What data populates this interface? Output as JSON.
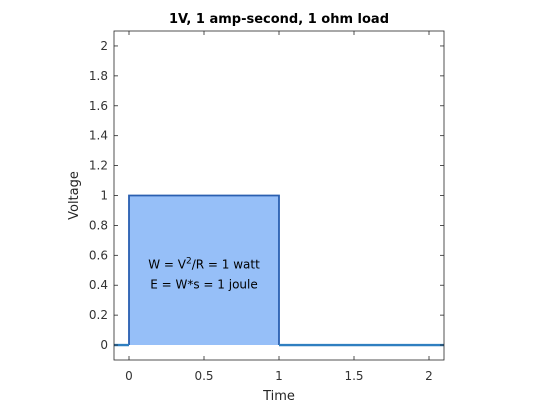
{
  "chart_data": {
    "type": "area",
    "title": "1V, 1 amp-second, 1 ohm load",
    "xlabel": "Time",
    "ylabel": "Voltage",
    "xlim": [
      -0.1,
      2.1
    ],
    "ylim": [
      -0.1,
      2.1
    ],
    "xticks": [
      0,
      0.5,
      1,
      1.5,
      2
    ],
    "xtick_labels": [
      "0",
      "0.5",
      "1",
      "1.5",
      "2"
    ],
    "yticks": [
      0,
      0.2,
      0.4,
      0.6,
      0.8,
      1,
      1.2,
      1.4,
      1.6,
      1.8,
      2
    ],
    "ytick_labels": [
      "0",
      "0.2",
      "0.4",
      "0.6",
      "0.8",
      "1",
      "1.2",
      "1.4",
      "1.6",
      "1.8",
      "2"
    ],
    "grid": false,
    "series": [
      {
        "x": [
          -0.1,
          0,
          0,
          1,
          1,
          2.1
        ],
        "y": [
          0,
          0,
          1,
          1,
          0,
          0
        ],
        "line_color": "#2a5fb0",
        "fill_color": "#96bff8"
      }
    ],
    "annotation_line1_pre": "W = V",
    "annotation_line1_sup": "2",
    "annotation_line1_post": "/R = 1 watt",
    "annotation_line2": "E = W*s = 1 joule",
    "baseline_color": "#2f7fc0"
  }
}
